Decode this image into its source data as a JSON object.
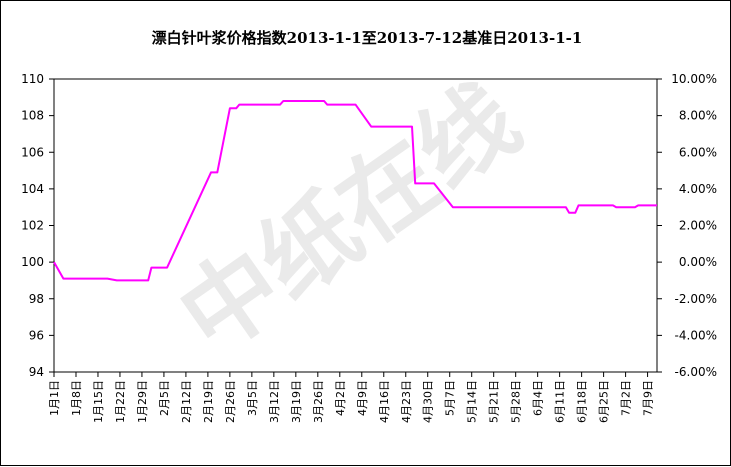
{
  "watermark": "中纸在线",
  "chart_data": {
    "type": "line",
    "title": "漂白针叶浆价格指数2013-1-1至2013-7-12基准日2013-1-1",
    "xlabel": "",
    "ylabel": "",
    "ylim": [
      94,
      110
    ],
    "y_ticks": [
      "94",
      "96",
      "98",
      "100",
      "102",
      "104",
      "106",
      "108",
      "110"
    ],
    "y2lim": [
      -6,
      10
    ],
    "y2_ticks": [
      "-6.00%",
      "-4.00%",
      "-2.00%",
      "0.00%",
      "2.00%",
      "4.00%",
      "6.00%",
      "8.00%",
      "10.00%"
    ],
    "x_ticks": [
      "1月1日",
      "1月8日",
      "1月15日",
      "1月22日",
      "1月29日",
      "2月5日",
      "2月12日",
      "2月19日",
      "2月26日",
      "3月5日",
      "3月12日",
      "3月19日",
      "3月26日",
      "4月2日",
      "4月9日",
      "4月16日",
      "4月23日",
      "4月30日",
      "5月7日",
      "5月14日",
      "5月21日",
      "5月28日",
      "6月4日",
      "6月11日",
      "6月18日",
      "6月25日",
      "7月2日",
      "7月9日"
    ],
    "grid": false,
    "legend": "none",
    "color": "#ff00ff",
    "series": [
      {
        "values": [
          {
            "x": "2013-01-01",
            "y": 100.0
          },
          {
            "x": "2013-01-04",
            "y": 99.1
          },
          {
            "x": "2013-01-18",
            "y": 99.1
          },
          {
            "x": "2013-01-21",
            "y": 99.0
          },
          {
            "x": "2013-01-31",
            "y": 99.0
          },
          {
            "x": "2013-02-01",
            "y": 99.7
          },
          {
            "x": "2013-02-06",
            "y": 99.7
          },
          {
            "x": "2013-02-20",
            "y": 104.9
          },
          {
            "x": "2013-02-22",
            "y": 104.9
          },
          {
            "x": "2013-02-26",
            "y": 108.4
          },
          {
            "x": "2013-02-28",
            "y": 108.4
          },
          {
            "x": "2013-03-01",
            "y": 108.6
          },
          {
            "x": "2013-03-14",
            "y": 108.6
          },
          {
            "x": "2013-03-15",
            "y": 108.8
          },
          {
            "x": "2013-03-28",
            "y": 108.8
          },
          {
            "x": "2013-03-29",
            "y": 108.6
          },
          {
            "x": "2013-04-07",
            "y": 108.6
          },
          {
            "x": "2013-04-12",
            "y": 107.4
          },
          {
            "x": "2013-04-25",
            "y": 107.4
          },
          {
            "x": "2013-04-26",
            "y": 104.3
          },
          {
            "x": "2013-05-02",
            "y": 104.3
          },
          {
            "x": "2013-05-08",
            "y": 103.0
          },
          {
            "x": "2013-06-13",
            "y": 103.0
          },
          {
            "x": "2013-06-14",
            "y": 102.7
          },
          {
            "x": "2013-06-16",
            "y": 102.7
          },
          {
            "x": "2013-06-17",
            "y": 103.1
          },
          {
            "x": "2013-06-28",
            "y": 103.1
          },
          {
            "x": "2013-06-29",
            "y": 103.0
          },
          {
            "x": "2013-07-05",
            "y": 103.0
          },
          {
            "x": "2013-07-06",
            "y": 103.1
          },
          {
            "x": "2013-07-12",
            "y": 103.1
          }
        ]
      }
    ]
  }
}
